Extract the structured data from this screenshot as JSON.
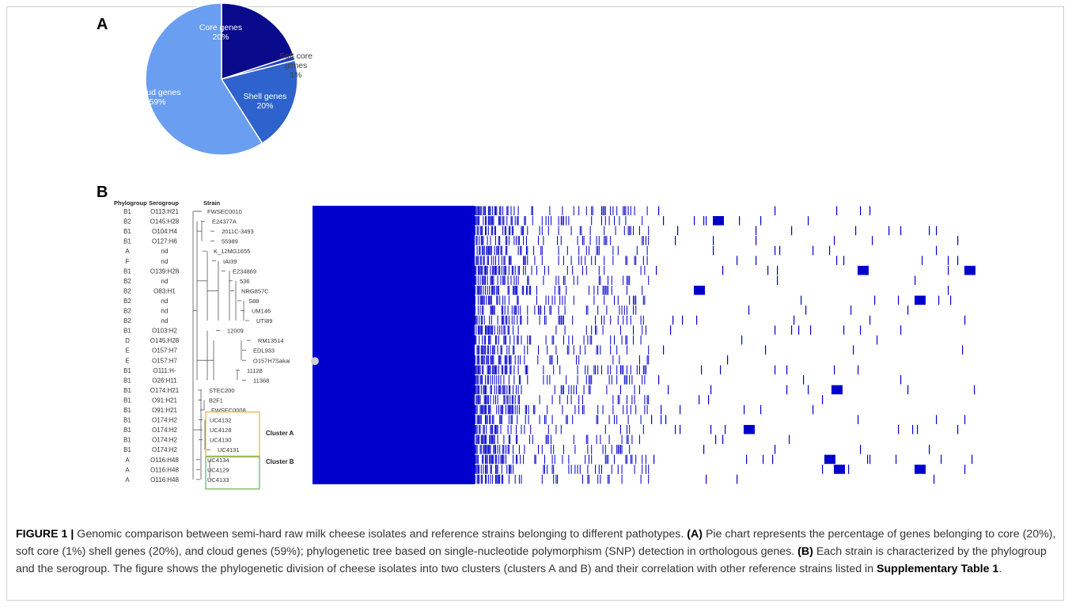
{
  "panel_a": {
    "letter": "A",
    "chart_data": {
      "type": "pie",
      "slices": [
        {
          "name": "Core genes",
          "value": 20,
          "label_line1": "Core genes",
          "label_line2": "20%",
          "color": "#0a0a8c"
        },
        {
          "name": "Soft core genes",
          "value": 1,
          "label_line1": "Soft core",
          "label_line2": "genes",
          "label_line3": "1%",
          "color": "#1f3fbf"
        },
        {
          "name": "Shell genes",
          "value": 20,
          "label_line1": "Shell genes",
          "label_line2": "20%",
          "color": "#2e62cc"
        },
        {
          "name": "Cloud genes",
          "value": 59,
          "label_line1": "Cloud genes",
          "label_line2": "59%",
          "color": "#6a9ef0"
        }
      ]
    }
  },
  "panel_b": {
    "letter": "B",
    "headers": {
      "phylogroup": "Phylogroup",
      "serogroup": "Serogroup",
      "strain": "Strain"
    },
    "rows": [
      {
        "phylogroup": "B1",
        "serogroup": "O113:H21",
        "strain": "FWSEC0010"
      },
      {
        "phylogroup": "B2",
        "serogroup": "O145:H28",
        "strain": "E24377A"
      },
      {
        "phylogroup": "B1",
        "serogroup": "O104:H4",
        "strain": "2011C-3493"
      },
      {
        "phylogroup": "B1",
        "serogroup": "O127:H6",
        "strain": "55989"
      },
      {
        "phylogroup": "A",
        "serogroup": "nd",
        "strain": "K_12MG1655"
      },
      {
        "phylogroup": "F",
        "serogroup": "nd",
        "strain": "IAI39"
      },
      {
        "phylogroup": "B1",
        "serogroup": "O139:H28",
        "strain": "E234869"
      },
      {
        "phylogroup": "B2",
        "serogroup": "nd",
        "strain": "536"
      },
      {
        "phylogroup": "B2",
        "serogroup": "O83:H1",
        "strain": "NRG857C"
      },
      {
        "phylogroup": "B2",
        "serogroup": "nd",
        "strain": "S88"
      },
      {
        "phylogroup": "B2",
        "serogroup": "nd",
        "strain": "UM146"
      },
      {
        "phylogroup": "B2",
        "serogroup": "nd",
        "strain": "UTI89"
      },
      {
        "phylogroup": "B1",
        "serogroup": "O103:H2",
        "strain": "12009"
      },
      {
        "phylogroup": "D",
        "serogroup": "O145:H28",
        "strain": "RM13514"
      },
      {
        "phylogroup": "E",
        "serogroup": "O157:H7",
        "strain": "EDL933"
      },
      {
        "phylogroup": "E",
        "serogroup": "O157:H7",
        "strain": "O157H7Sakai"
      },
      {
        "phylogroup": "B1",
        "serogroup": "O111:H-",
        "strain": "11128"
      },
      {
        "phylogroup": "B1",
        "serogroup": "O26:H11",
        "strain": "11368"
      },
      {
        "phylogroup": "B1",
        "serogroup": "O174:H21",
        "strain": "STEC200"
      },
      {
        "phylogroup": "B1",
        "serogroup": "O91:H21",
        "strain": "B2F1"
      },
      {
        "phylogroup": "B1",
        "serogroup": "O91:H21",
        "strain": "FWSEC0008"
      },
      {
        "phylogroup": "B1",
        "serogroup": "O174:H2",
        "strain": "UC4132"
      },
      {
        "phylogroup": "B1",
        "serogroup": "O174:H2",
        "strain": "UC4128"
      },
      {
        "phylogroup": "B1",
        "serogroup": "O174:H2",
        "strain": "UC4130"
      },
      {
        "phylogroup": "B1",
        "serogroup": "O174:H2",
        "strain": "UC4131"
      },
      {
        "phylogroup": "A",
        "serogroup": "O116:H48",
        "strain": "UC4134"
      },
      {
        "phylogroup": "A",
        "serogroup": "O116:H48",
        "strain": "UC4129"
      },
      {
        "phylogroup": "A",
        "serogroup": "O116:H48",
        "strain": "UC4133"
      }
    ],
    "clusters": [
      {
        "label": "Cluster A",
        "color": "#f0b030"
      },
      {
        "label": "Cluster B",
        "color": "#6ab04c"
      }
    ],
    "matrix_color": "#0000cc"
  },
  "caption": {
    "figure_label": "FIGURE 1 |",
    "text_1": " Genomic comparison between semi-hard raw milk cheese isolates and reference strains belonging to different pathotypes. ",
    "label_a": "(A)",
    "text_2": " Pie chart represents the percentage of genes belonging to core (20%), soft core (1%) shell genes (20%), and cloud genes (59%); phylogenetic tree based on single-nucleotide polymorphism (SNP) detection in orthologous genes. ",
    "label_b": "(B)",
    "text_3": " Each strain is characterized by the phylogroup and the serogroup. The figure shows the phylogenetic division of cheese isolates into two clusters (clusters A and B) and their correlation with other reference strains listed in ",
    "ref": "Supplementary Table 1",
    "text_4": "."
  }
}
